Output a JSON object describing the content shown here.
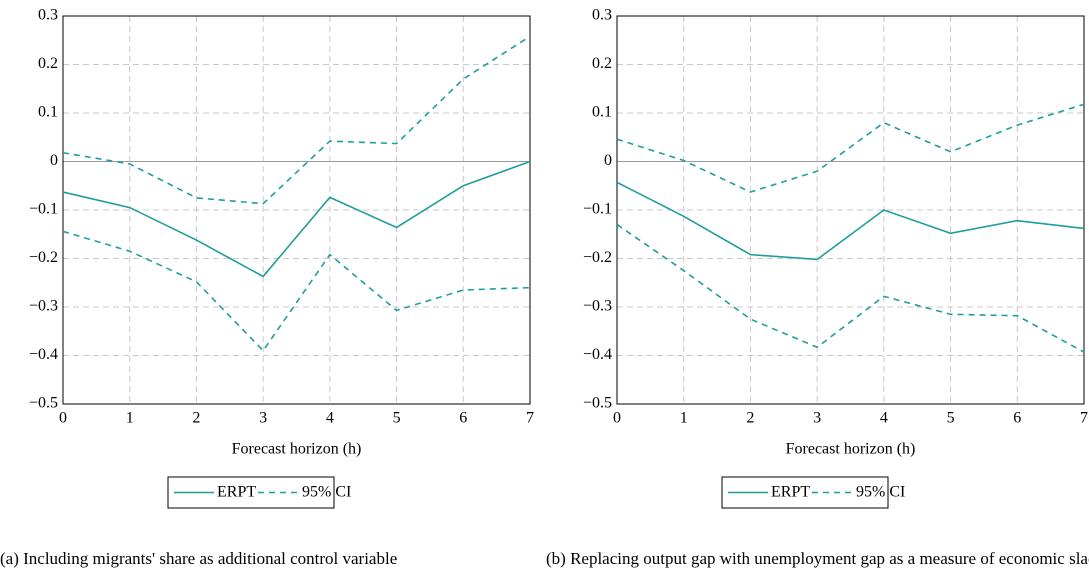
{
  "chart_data": [
    {
      "type": "line",
      "xlabel": "Forecast horizon (h)",
      "caption": "(a) Including migrants' share as additional control variable",
      "x": [
        0,
        1,
        2,
        3,
        4,
        5,
        6,
        7
      ],
      "xlim": [
        0,
        7
      ],
      "xticks": [
        0,
        1,
        2,
        3,
        4,
        5,
        6,
        7
      ],
      "ylim": [
        -0.5,
        0.3
      ],
      "yticks": [
        {
          "value": -0.5,
          "label": "−0.5"
        },
        {
          "value": -0.4,
          "label": "−0.4"
        },
        {
          "value": -0.3,
          "label": "−0.3"
        },
        {
          "value": -0.2,
          "label": "−0.2"
        },
        {
          "value": -0.1,
          "label": "−0.1"
        },
        0,
        0.1,
        0.2,
        0.3
      ],
      "grid": true,
      "series": [
        {
          "name": "ERPT",
          "color": "#1f9e9c",
          "values": [
            -0.063,
            -0.095,
            -0.162,
            -0.237,
            -0.074,
            -0.136,
            -0.05,
            0.0
          ]
        }
      ],
      "ci": {
        "name": "95% CI",
        "color": "#1f9e9c",
        "upper": [
          0.018,
          -0.005,
          -0.075,
          -0.087,
          0.042,
          0.037,
          0.17,
          0.258
        ],
        "lower": [
          -0.144,
          -0.185,
          -0.248,
          -0.39,
          -0.192,
          -0.307,
          -0.265,
          -0.26
        ]
      }
    },
    {
      "type": "line",
      "xlabel": "Forecast horizon (h)",
      "caption": "(b) Replacing output gap with unemployment gap as a measure of economic slack",
      "x": [
        0,
        1,
        2,
        3,
        4,
        5,
        6,
        7
      ],
      "xlim": [
        0,
        7
      ],
      "xticks": [
        0,
        1,
        2,
        3,
        4,
        5,
        6,
        7
      ],
      "ylim": [
        -0.5,
        0.3
      ],
      "yticks": [
        {
          "value": -0.5,
          "label": "−0.5"
        },
        {
          "value": -0.4,
          "label": "−0.4"
        },
        {
          "value": -0.3,
          "label": "−0.3"
        },
        {
          "value": -0.2,
          "label": "−0.2"
        },
        {
          "value": -0.1,
          "label": "−0.1"
        },
        0,
        0.1,
        0.2,
        0.3
      ],
      "grid": true,
      "series": [
        {
          "name": "ERPT",
          "color": "#1f9e9c",
          "values": [
            -0.043,
            -0.113,
            -0.192,
            -0.202,
            -0.1,
            -0.148,
            -0.122,
            -0.138
          ]
        }
      ],
      "ci": {
        "name": "95% CI",
        "color": "#1f9e9c",
        "upper": [
          0.046,
          0.002,
          -0.063,
          -0.02,
          0.08,
          0.02,
          0.075,
          0.118
        ],
        "lower": [
          -0.13,
          -0.225,
          -0.325,
          -0.383,
          -0.278,
          -0.315,
          -0.318,
          -0.393
        ]
      }
    }
  ]
}
